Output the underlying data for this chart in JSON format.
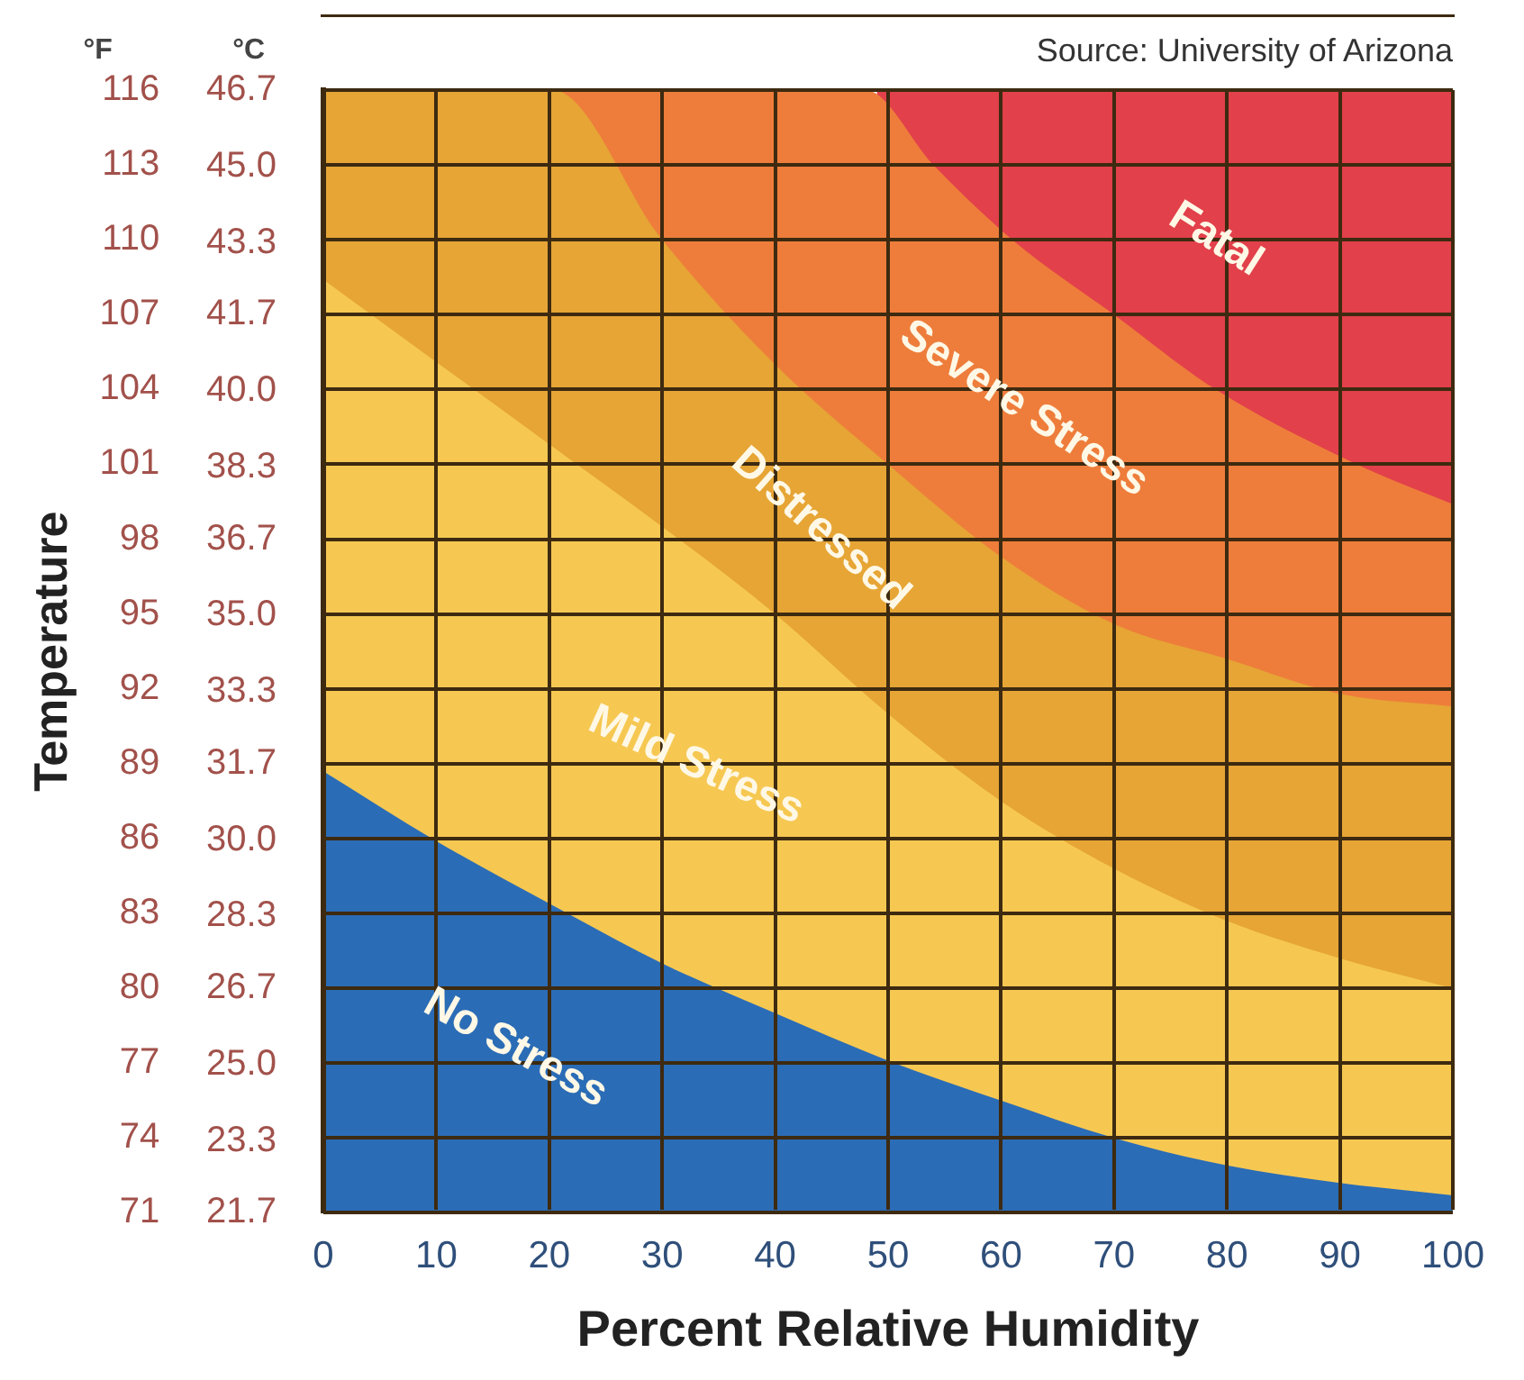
{
  "chart_data": {
    "type": "area",
    "xlabel": "Percent Relative Humidity",
    "ylabel": "Temperature",
    "annotations": [
      "Source: University of Arizona",
      "°F",
      "°C"
    ],
    "xlim": [
      0,
      100
    ],
    "xticks": [
      0,
      10,
      20,
      30,
      40,
      50,
      60,
      70,
      80,
      90,
      100
    ],
    "ylim": [
      71,
      116
    ],
    "yticks": [
      71,
      74,
      77,
      80,
      83,
      86,
      89,
      92,
      95,
      98,
      101,
      104,
      107,
      110,
      113,
      116
    ],
    "y2lim": [
      21.7,
      46.7
    ],
    "y2ticks": [
      {
        "value": 21.7,
        "label": "21.7"
      },
      {
        "value": 23.3,
        "label": "23.3"
      },
      {
        "value": 25,
        "label": "25.0"
      },
      {
        "value": 26.7,
        "label": "26.7"
      },
      {
        "value": 28.3,
        "label": "28.3"
      },
      {
        "value": 30,
        "label": "30.0"
      },
      {
        "value": 31.7,
        "label": "31.7"
      },
      {
        "value": 33.3,
        "label": "33.3"
      },
      {
        "value": 35,
        "label": "35.0"
      },
      {
        "value": 36.7,
        "label": "36.7"
      },
      {
        "value": 38.3,
        "label": "38.3"
      },
      {
        "value": 40,
        "label": "40.0"
      },
      {
        "value": 41.7,
        "label": "41.7"
      },
      {
        "value": 43.3,
        "label": "43.3"
      },
      {
        "value": 45,
        "label": "45.0"
      },
      {
        "value": 46.7,
        "label": "46.7"
      }
    ],
    "grid": true,
    "legend": false,
    "series": [
      {
        "name": "No Stress",
        "color": "#2b6cb6",
        "x": [
          0,
          10,
          20,
          30,
          40,
          50,
          60,
          70,
          80,
          90,
          100
        ],
        "values": [
          88.7,
          85.9,
          83.4,
          81.0,
          79.0,
          77.1,
          75.5,
          74.0,
          72.9,
          72.2,
          71.7
        ]
      },
      {
        "name": "Mild Stress",
        "color": "#f6c852",
        "x": [
          0,
          10,
          20,
          30,
          40,
          50,
          60,
          70,
          80,
          90,
          100
        ],
        "values": [
          108.4,
          105.1,
          101.8,
          98.5,
          95.0,
          91.0,
          87.5,
          84.8,
          82.7,
          81.2,
          80.0
        ]
      },
      {
        "name": "Distressed",
        "color": "#e6a535",
        "x": [
          0,
          20.3,
          30,
          40,
          50,
          60,
          70,
          80,
          90,
          100
        ],
        "values": [
          116,
          116,
          110,
          105,
          101,
          97.3,
          94.6,
          93.2,
          91.8,
          91.3
        ]
      },
      {
        "name": "Severe Stress",
        "color": "#ee7d3b",
        "x": [
          21,
          48,
          54,
          61,
          70,
          79,
          91.5,
          100
        ],
        "values": [
          116,
          116,
          113,
          110,
          107,
          104,
          101,
          99.4
        ]
      },
      {
        "name": "Fatal",
        "color": "#e2404a",
        "x": [
          49,
          100
        ],
        "values": [
          116,
          116
        ]
      }
    ]
  }
}
